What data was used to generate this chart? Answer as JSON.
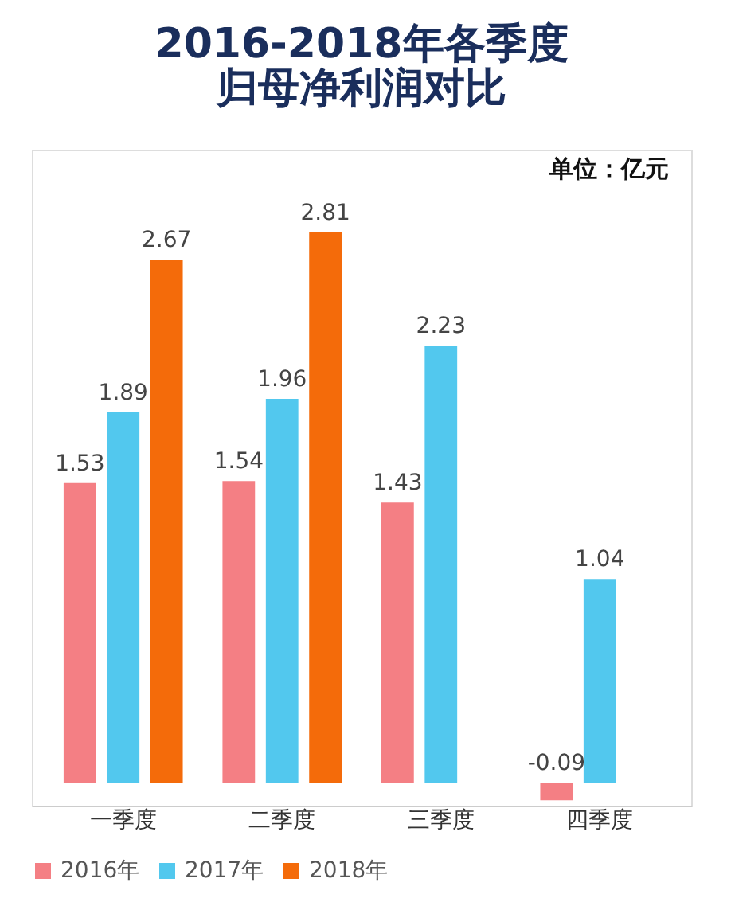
{
  "chart_data": {
    "type": "bar",
    "title": [
      "2016-2018年各季度",
      "归母净利润对比"
    ],
    "annotations": [
      "单位：亿元"
    ],
    "categories": [
      "一季度",
      "二季度",
      "三季度",
      "四季度"
    ],
    "series": [
      {
        "name": "2016年",
        "color": "#f47f84",
        "values": [
          1.53,
          1.54,
          1.43,
          -0.09
        ]
      },
      {
        "name": "2017年",
        "color": "#52c8ee",
        "values": [
          1.89,
          1.96,
          2.23,
          1.04
        ]
      },
      {
        "name": "2018年",
        "color": "#f46b0a",
        "values": [
          2.67,
          2.81,
          null,
          null
        ]
      }
    ],
    "data_labels": true,
    "legend": "bottom",
    "grid": false
  }
}
